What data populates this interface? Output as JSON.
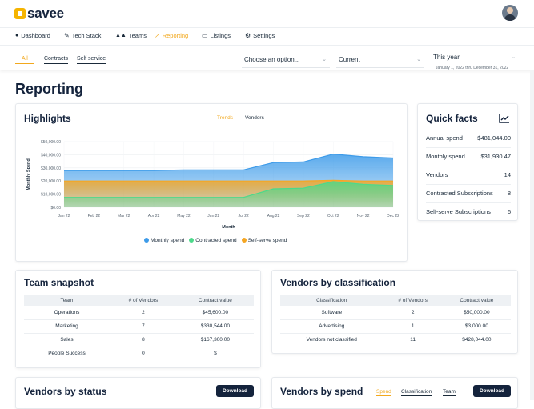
{
  "app": {
    "brand": "savee"
  },
  "nav": {
    "items": [
      {
        "label": "Dashboard",
        "icon": "palette-icon",
        "glyph": "🎨"
      },
      {
        "label": "Tech Stack",
        "icon": "edit-icon",
        "glyph": "✎"
      },
      {
        "label": "Teams",
        "icon": "users-icon",
        "glyph": "👥"
      },
      {
        "label": "Reporting",
        "icon": "chart-icon",
        "glyph": "📈"
      },
      {
        "label": "Listings",
        "icon": "monitor-icon",
        "glyph": "▭"
      },
      {
        "label": "Settings",
        "icon": "gears-icon",
        "glyph": "⚙"
      }
    ],
    "active": "Reporting"
  },
  "filters": {
    "tabs": [
      "All",
      "Contracts",
      "Self service"
    ],
    "select1": "Choose an option...",
    "select2": "Current",
    "select3": "This year",
    "select3_sub": "January 1, 2022 thru December 31, 2022"
  },
  "page": {
    "title": "Reporting"
  },
  "highlights": {
    "title": "Highlights",
    "tabs": [
      "Trends",
      "Vendors"
    ]
  },
  "chart_data": {
    "type": "area",
    "xlabel": "Month",
    "ylabel": "Monthly Spend",
    "ylim": [
      0,
      50000
    ],
    "yticks": [
      "$0.00",
      "$10,000.00",
      "$20,000.00",
      "$30,000.00",
      "$40,000.00",
      "$50,000.00"
    ],
    "categories": [
      "Jan 22",
      "Feb 22",
      "Mar 22",
      "Apr 22",
      "May 22",
      "Jun 22",
      "Jul 22",
      "Aug 22",
      "Sep 22",
      "Oct 22",
      "Nov 22",
      "Dec 22"
    ],
    "series": [
      {
        "name": "Monthly spend",
        "color": "#3d9be9",
        "values": [
          28000,
          28000,
          28000,
          28000,
          28500,
          28500,
          28500,
          34000,
          34500,
          40500,
          38500,
          37500
        ]
      },
      {
        "name": "Self-serve spend",
        "color": "#f5a623",
        "values": [
          20000,
          20000,
          20000,
          20000,
          20000,
          20000,
          20000,
          20000,
          20000,
          20500,
          20000,
          20000
        ]
      },
      {
        "name": "Contracted spend",
        "color": "#4cd98a",
        "values": [
          7500,
          7500,
          7500,
          7500,
          7500,
          7500,
          7500,
          14000,
          14500,
          19500,
          17500,
          16500
        ]
      }
    ],
    "legend": [
      "Monthly spend",
      "Contracted spend",
      "Self-serve spend"
    ]
  },
  "quick_facts": {
    "title": "Quick facts",
    "rows": [
      {
        "label": "Annual spend",
        "value": "$481,044.00"
      },
      {
        "label": "Monthly spend",
        "value": "$31,930.47"
      },
      {
        "label": "Vendors",
        "value": "14"
      },
      {
        "label": "Contracted Subscriptions",
        "value": "8"
      },
      {
        "label": "Self-serve Subscriptions",
        "value": "6"
      }
    ]
  },
  "team_snapshot": {
    "title": "Team snapshot",
    "headers": [
      "Team",
      "# of Vendors",
      "Contract value"
    ],
    "rows": [
      [
        "Operations",
        "2",
        "$45,600.00"
      ],
      [
        "Marketing",
        "7",
        "$330,544.00"
      ],
      [
        "Sales",
        "8",
        "$167,300.00"
      ],
      [
        "People Success",
        "0",
        "$"
      ]
    ]
  },
  "vendors_classification": {
    "title": "Vendors by classification",
    "headers": [
      "Classification",
      "# of Vendors",
      "Contract value"
    ],
    "rows": [
      [
        "Software",
        "2",
        "$50,000.00"
      ],
      [
        "Advertising",
        "1",
        "$3,000.00"
      ],
      [
        "Vendors not classified",
        "11",
        "$428,044.00"
      ]
    ]
  },
  "vendors_status": {
    "title": "Vendors by status",
    "download": "Download"
  },
  "vendors_spend": {
    "title": "Vendors by spend",
    "tabs": [
      "Spend",
      "Classification",
      "Team"
    ],
    "download": "Download"
  }
}
